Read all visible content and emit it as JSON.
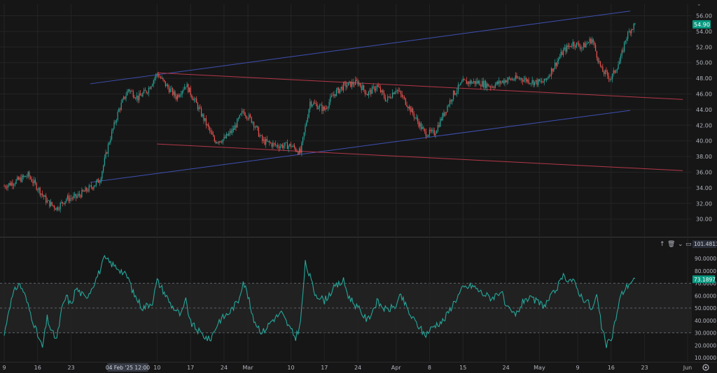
{
  "colors": {
    "background": "#161616",
    "grid": "#242424",
    "up": "#26a69a",
    "down": "#ef5350",
    "rsi_line": "#26a69a",
    "blue_channel": "#3f51b5",
    "red_channel": "#b5384a",
    "axis_text": "#b2b5be",
    "price_badge": "#089981"
  },
  "top_right_indicator": "⌄",
  "price_axis": {
    "ticks": [
      "56.00",
      "54.00",
      "52.00",
      "50.00",
      "48.00",
      "46.00",
      "44.00",
      "42.00",
      "40.00",
      "38.00",
      "36.00",
      "34.00",
      "32.00",
      "30.00"
    ],
    "last_price_label": "54.90"
  },
  "rsi_axis": {
    "ticks": [
      "90.0000",
      "80.0000",
      "70.0000",
      "60.0000",
      "50.0000",
      "40.0000",
      "30.0000",
      "20.0000",
      "10.0000"
    ],
    "max_label": "101.4813",
    "current_label": "73.1897",
    "pane_controls": [
      "↑",
      "🗑",
      "⌄",
      "▭"
    ]
  },
  "time_axis": {
    "labels": [
      "9",
      "16",
      "23",
      "10",
      "17",
      "24",
      "Mar",
      "10",
      "17",
      "24",
      "Apr",
      "8",
      "15",
      "24",
      "May",
      "9",
      "16",
      "23",
      "Jun"
    ],
    "crosshair_label": "04 Feb '25   12:00"
  },
  "settings_icon": "gear-icon",
  "chart_data": [
    {
      "type": "candlestick",
      "title": "",
      "x_range": [
        "2025-01-09",
        "2025-06-01"
      ],
      "ylim": [
        29,
        57
      ],
      "grid": true,
      "price_path": [
        [
          "2025-01-09",
          34.2
        ],
        [
          "2025-01-12",
          35.0
        ],
        [
          "2025-01-14",
          35.6
        ],
        [
          "2025-01-16",
          34.0
        ],
        [
          "2025-01-18",
          32.2
        ],
        [
          "2025-01-20",
          31.4
        ],
        [
          "2025-01-22",
          32.6
        ],
        [
          "2025-01-24",
          32.8
        ],
        [
          "2025-01-27",
          34.0
        ],
        [
          "2025-01-29",
          35.0
        ],
        [
          "2025-01-31",
          40.0
        ],
        [
          "2025-02-02",
          44.0
        ],
        [
          "2025-02-04",
          46.6
        ],
        [
          "2025-02-06",
          45.5
        ],
        [
          "2025-02-08",
          46.5
        ],
        [
          "2025-02-10",
          48.6
        ],
        [
          "2025-02-12",
          47.0
        ],
        [
          "2025-02-14",
          45.6
        ],
        [
          "2025-02-16",
          47.2
        ],
        [
          "2025-02-18",
          45.0
        ],
        [
          "2025-02-20",
          42.5
        ],
        [
          "2025-02-22",
          40.0
        ],
        [
          "2025-02-24",
          40.2
        ],
        [
          "2025-02-26",
          41.5
        ],
        [
          "2025-02-28",
          43.8
        ],
        [
          "2025-03-02",
          42.5
        ],
        [
          "2025-03-04",
          40.0
        ],
        [
          "2025-03-07",
          39.4
        ],
        [
          "2025-03-10",
          39.4
        ],
        [
          "2025-03-12",
          38.5
        ],
        [
          "2025-03-14",
          45.0
        ],
        [
          "2025-03-17",
          44.0
        ],
        [
          "2025-03-19",
          46.0
        ],
        [
          "2025-03-21",
          47.0
        ],
        [
          "2025-03-24",
          47.5
        ],
        [
          "2025-03-26",
          46.0
        ],
        [
          "2025-03-28",
          47.0
        ],
        [
          "2025-03-30",
          45.2
        ],
        [
          "2025-04-01",
          46.7
        ],
        [
          "2025-04-03",
          45.0
        ],
        [
          "2025-04-05",
          43.0
        ],
        [
          "2025-04-07",
          41.0
        ],
        [
          "2025-04-09",
          41.0
        ],
        [
          "2025-04-11",
          43.5
        ],
        [
          "2025-04-13",
          46.0
        ],
        [
          "2025-04-15",
          47.5
        ],
        [
          "2025-04-18",
          47.5
        ],
        [
          "2025-04-21",
          47.0
        ],
        [
          "2025-04-24",
          47.8
        ],
        [
          "2025-04-27",
          48.0
        ],
        [
          "2025-04-30",
          47.5
        ],
        [
          "2025-05-02",
          47.5
        ],
        [
          "2025-05-04",
          49.5
        ],
        [
          "2025-05-06",
          51.5
        ],
        [
          "2025-05-08",
          52.5
        ],
        [
          "2025-05-10",
          52.0
        ],
        [
          "2025-05-12",
          53.0
        ],
        [
          "2025-05-14",
          49.0
        ],
        [
          "2025-05-16",
          48.0
        ],
        [
          "2025-05-18",
          50.5
        ],
        [
          "2025-05-19",
          53.0
        ],
        [
          "2025-05-20",
          54.2
        ],
        [
          "2025-05-21",
          54.9
        ]
      ],
      "blue_channel": {
        "upper": [
          [
            "2025-01-27",
            47.3
          ],
          [
            "2025-05-20",
            56.6
          ]
        ],
        "lower": [
          [
            "2025-01-27",
            34.7
          ],
          [
            "2025-05-20",
            43.9
          ]
        ]
      },
      "red_channel": {
        "upper": [
          [
            "2025-02-10",
            48.7
          ],
          [
            "2025-05-31",
            45.3
          ]
        ],
        "lower": [
          [
            "2025-02-10",
            39.6
          ],
          [
            "2025-05-31",
            36.2
          ]
        ]
      }
    },
    {
      "type": "line",
      "title": "",
      "ylim": [
        5,
        100
      ],
      "band": [
        30,
        70
      ],
      "series": [
        {
          "values": [
            [
              "2025-01-09",
              28
            ],
            [
              "2025-01-10",
              50
            ],
            [
              "2025-01-11",
              62
            ],
            [
              "2025-01-12",
              70
            ],
            [
              "2025-01-13",
              64
            ],
            [
              "2025-01-15",
              40
            ],
            [
              "2025-01-16",
              28
            ],
            [
              "2025-01-17",
              18
            ],
            [
              "2025-01-18",
              42
            ],
            [
              "2025-01-19",
              30
            ],
            [
              "2025-01-20",
              25
            ],
            [
              "2025-01-21",
              48
            ],
            [
              "2025-01-22",
              60
            ],
            [
              "2025-01-23",
              52
            ],
            [
              "2025-01-24",
              66
            ],
            [
              "2025-01-26",
              58
            ],
            [
              "2025-01-27",
              64
            ],
            [
              "2025-01-28",
              72
            ],
            [
              "2025-01-29",
              80
            ],
            [
              "2025-01-30",
              90
            ],
            [
              "2025-02-01",
              84
            ],
            [
              "2025-02-02",
              82
            ],
            [
              "2025-02-04",
              74
            ],
            [
              "2025-02-05",
              62
            ],
            [
              "2025-02-07",
              50
            ],
            [
              "2025-02-09",
              55
            ],
            [
              "2025-02-10",
              72
            ],
            [
              "2025-02-11",
              66
            ],
            [
              "2025-02-13",
              52
            ],
            [
              "2025-02-15",
              44
            ],
            [
              "2025-02-16",
              56
            ],
            [
              "2025-02-17",
              38
            ],
            [
              "2025-02-19",
              30
            ],
            [
              "2025-02-21",
              24
            ],
            [
              "2025-02-23",
              40
            ],
            [
              "2025-02-25",
              46
            ],
            [
              "2025-02-27",
              56
            ],
            [
              "2025-02-28",
              72
            ],
            [
              "2025-03-01",
              60
            ],
            [
              "2025-03-02",
              42
            ],
            [
              "2025-03-04",
              30
            ],
            [
              "2025-03-06",
              40
            ],
            [
              "2025-03-08",
              46
            ],
            [
              "2025-03-10",
              32
            ],
            [
              "2025-03-11",
              26
            ],
            [
              "2025-03-12",
              38
            ],
            [
              "2025-03-13",
              86
            ],
            [
              "2025-03-14",
              75
            ],
            [
              "2025-03-15",
              62
            ],
            [
              "2025-03-17",
              56
            ],
            [
              "2025-03-19",
              66
            ],
            [
              "2025-03-21",
              72
            ],
            [
              "2025-03-22",
              60
            ],
            [
              "2025-03-24",
              50
            ],
            [
              "2025-03-26",
              40
            ],
            [
              "2025-03-28",
              55
            ],
            [
              "2025-03-30",
              48
            ],
            [
              "2025-04-01",
              52
            ],
            [
              "2025-04-02",
              60
            ],
            [
              "2025-04-04",
              44
            ],
            [
              "2025-04-06",
              34
            ],
            [
              "2025-04-07",
              28
            ],
            [
              "2025-04-09",
              36
            ],
            [
              "2025-04-11",
              40
            ],
            [
              "2025-04-13",
              54
            ],
            [
              "2025-04-15",
              66
            ],
            [
              "2025-04-17",
              68
            ],
            [
              "2025-04-19",
              62
            ],
            [
              "2025-04-21",
              58
            ],
            [
              "2025-04-23",
              64
            ],
            [
              "2025-04-24",
              50
            ],
            [
              "2025-04-26",
              44
            ],
            [
              "2025-04-28",
              58
            ],
            [
              "2025-04-30",
              56
            ],
            [
              "2025-05-02",
              52
            ],
            [
              "2025-05-04",
              62
            ],
            [
              "2025-05-06",
              75
            ],
            [
              "2025-05-08",
              72
            ],
            [
              "2025-05-10",
              58
            ],
            [
              "2025-05-11",
              56
            ],
            [
              "2025-05-12",
              48
            ],
            [
              "2025-05-13",
              60
            ],
            [
              "2025-05-14",
              35
            ],
            [
              "2025-05-15",
              20
            ],
            [
              "2025-05-16",
              24
            ],
            [
              "2025-05-17",
              42
            ],
            [
              "2025-05-18",
              60
            ],
            [
              "2025-05-19",
              66
            ],
            [
              "2025-05-20",
              71
            ],
            [
              "2025-05-21",
              73.19
            ]
          ]
        }
      ]
    }
  ]
}
